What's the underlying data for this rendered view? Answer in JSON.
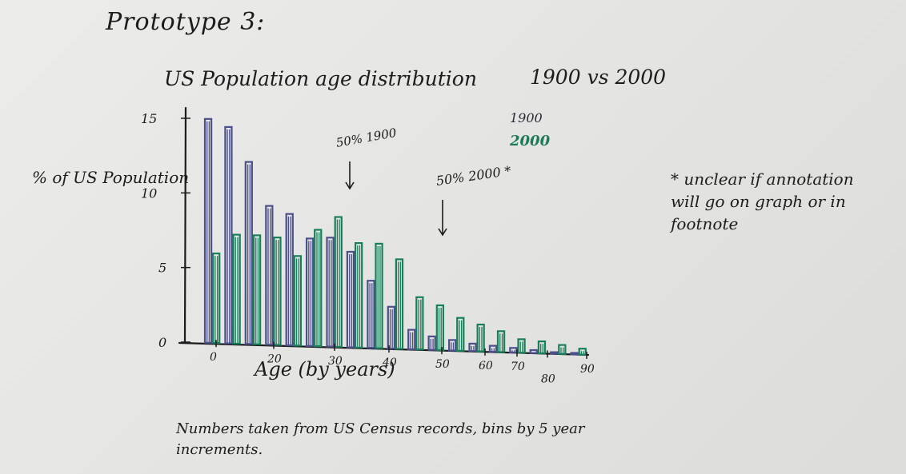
{
  "heading": "Prototype 3:",
  "note": "* unclear if annotation will go on graph or in footnote",
  "footnote": "Numbers taken from US Census records, bins by 5 year increments.",
  "chart_data": {
    "type": "bar",
    "title": "US Population age distribution",
    "title_years": "1900 vs 2000",
    "xlabel": "Age (by years)",
    "ylabel": "% of US Population",
    "ylim": [
      0,
      15
    ],
    "x_tick_labels": [
      "0",
      "20",
      "30",
      "40",
      "50",
      "60",
      "70",
      "80",
      "90"
    ],
    "y_tick_labels": [
      "0",
      "5",
      "10",
      "15"
    ],
    "categories": [
      "0-4",
      "5-9",
      "10-14",
      "15-19",
      "20-24",
      "25-29",
      "30-34",
      "35-39",
      "40-44",
      "45-49",
      "50-54",
      "55-59",
      "60-64",
      "65-69",
      "70-74",
      "75-79",
      "80-84",
      "85-89",
      "90+"
    ],
    "series": [
      {
        "name": "1900",
        "color": "#4b4f8a",
        "values": [
          15,
          14.5,
          12.2,
          9.3,
          8.8,
          7.2,
          7.3,
          6.4,
          4.5,
          2.8,
          1.3,
          0.9,
          0.7,
          0.5,
          0.4,
          0.3,
          0.2,
          0.1,
          0.1
        ]
      },
      {
        "name": "2000",
        "color": "#17805a",
        "values": [
          6.0,
          7.3,
          7.3,
          7.2,
          6.0,
          7.8,
          8.7,
          7.0,
          7.0,
          6.0,
          3.5,
          3.0,
          2.2,
          1.8,
          1.4,
          0.9,
          0.8,
          0.6,
          0.4
        ]
      }
    ],
    "annotations": [
      {
        "text": "50% 1900",
        "x": "40"
      },
      {
        "text": "50% 2000 *",
        "x": "50"
      }
    ],
    "legend": [
      "1900",
      "2000"
    ],
    "legend_position": "top-right",
    "grid": false
  }
}
